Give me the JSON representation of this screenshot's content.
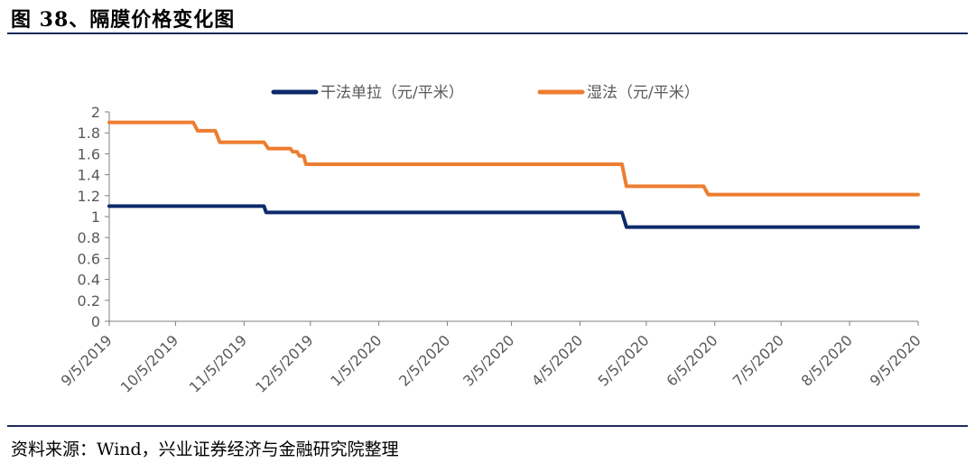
{
  "figure_title": "图 38、隔膜价格变化图",
  "source_note": "资料来源：Wind，兴业证券经济与金融研究院整理",
  "colors": {
    "dry": "#0d2a6b",
    "wet": "#ed7d31",
    "axis": "#7f7f7f",
    "rule": "#1f2a5a"
  },
  "chart_data": {
    "type": "line",
    "title": "",
    "xlabel": "",
    "ylabel": "",
    "x_range": [
      "2019-09-05",
      "2020-09-05"
    ],
    "ylim": [
      0,
      2
    ],
    "y_ticks": [
      "0",
      "0.2",
      "0.4",
      "0.6",
      "0.8",
      "1",
      "1.2",
      "1.4",
      "1.6",
      "1.8",
      "2"
    ],
    "x_ticks": [
      {
        "date": "2019-09-05",
        "label": "9/5/2019"
      },
      {
        "date": "2019-10-05",
        "label": "10/5/2019"
      },
      {
        "date": "2019-11-05",
        "label": "11/5/2019"
      },
      {
        "date": "2019-12-05",
        "label": "12/5/2019"
      },
      {
        "date": "2020-01-05",
        "label": "1/5/2020"
      },
      {
        "date": "2020-02-05",
        "label": "2/5/2020"
      },
      {
        "date": "2020-03-05",
        "label": "3/5/2020"
      },
      {
        "date": "2020-04-05",
        "label": "4/5/2020"
      },
      {
        "date": "2020-05-05",
        "label": "5/5/2020"
      },
      {
        "date": "2020-06-05",
        "label": "6/5/2020"
      },
      {
        "date": "2020-07-05",
        "label": "7/5/2020"
      },
      {
        "date": "2020-08-05",
        "label": "8/5/2020"
      },
      {
        "date": "2020-09-05",
        "label": "9/5/2020"
      }
    ],
    "grid": false,
    "legend_position": "top-center",
    "series": [
      {
        "name": "干法单拉（元/平米）",
        "color": "#0d2a6b",
        "points": [
          {
            "x": "2019-09-05",
            "y": 1.1
          },
          {
            "x": "2019-11-14",
            "y": 1.1
          },
          {
            "x": "2019-11-15",
            "y": 1.04
          },
          {
            "x": "2020-04-24",
            "y": 1.04
          },
          {
            "x": "2020-04-26",
            "y": 0.9
          },
          {
            "x": "2020-09-05",
            "y": 0.9
          }
        ]
      },
      {
        "name": "湿法（元/平米）",
        "color": "#ed7d31",
        "points": [
          {
            "x": "2019-09-05",
            "y": 1.9
          },
          {
            "x": "2019-10-13",
            "y": 1.9
          },
          {
            "x": "2019-10-15",
            "y": 1.82
          },
          {
            "x": "2019-10-23",
            "y": 1.82
          },
          {
            "x": "2019-10-25",
            "y": 1.71
          },
          {
            "x": "2019-11-14",
            "y": 1.71
          },
          {
            "x": "2019-11-16",
            "y": 1.65
          },
          {
            "x": "2019-11-26",
            "y": 1.65
          },
          {
            "x": "2019-11-27",
            "y": 1.62
          },
          {
            "x": "2019-11-29",
            "y": 1.62
          },
          {
            "x": "2019-11-30",
            "y": 1.58
          },
          {
            "x": "2019-12-02",
            "y": 1.58
          },
          {
            "x": "2019-12-03",
            "y": 1.5
          },
          {
            "x": "2020-04-24",
            "y": 1.5
          },
          {
            "x": "2020-04-26",
            "y": 1.29
          },
          {
            "x": "2020-05-31",
            "y": 1.29
          },
          {
            "x": "2020-06-02",
            "y": 1.21
          },
          {
            "x": "2020-09-05",
            "y": 1.21
          }
        ]
      }
    ]
  }
}
